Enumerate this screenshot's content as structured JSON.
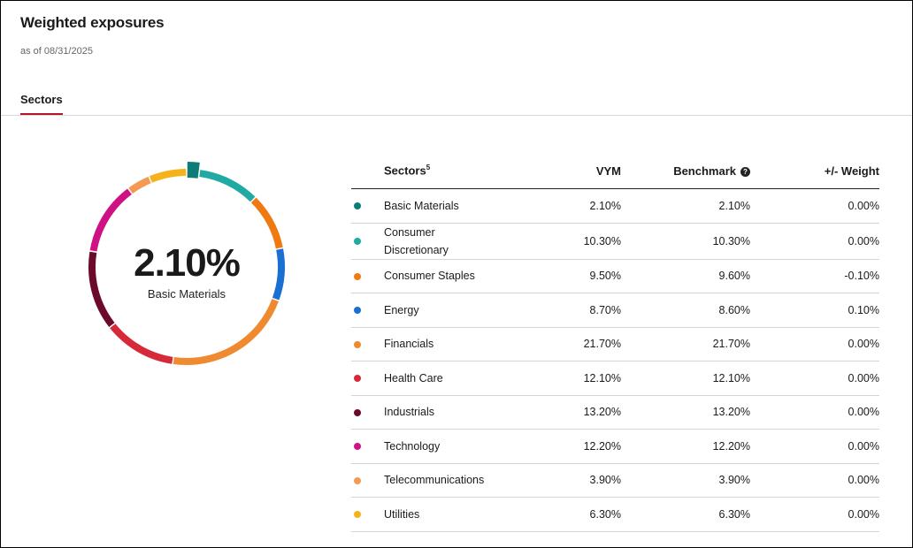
{
  "header": {
    "title": "Weighted exposures",
    "as_of": "as of 08/31/2025"
  },
  "tabs": [
    {
      "label": "Sectors",
      "active": true
    }
  ],
  "donut": {
    "center_value": "2.10%",
    "center_label": "Basic Materials",
    "highlighted_index": 0
  },
  "table": {
    "headers": {
      "sector": "Sectors",
      "sector_footnote": "5",
      "fund": "VYM",
      "benchmark": "Benchmark",
      "weight": "+/- Weight"
    }
  },
  "chart_data": {
    "type": "pie",
    "variant": "donut",
    "series": [
      {
        "name": "VYM",
        "values": [
          2.1,
          10.3,
          9.5,
          8.7,
          21.7,
          12.1,
          13.2,
          12.2,
          3.9,
          6.3
        ]
      },
      {
        "name": "Benchmark",
        "values": [
          2.1,
          10.3,
          9.6,
          8.6,
          21.7,
          12.1,
          13.2,
          12.2,
          3.9,
          6.3
        ]
      }
    ],
    "rows": [
      {
        "sector": "Basic Materials",
        "color": "#0d7c75",
        "vym": "2.10%",
        "benchmark": "2.10%",
        "weight": "0.00%"
      },
      {
        "sector": "Consumer Discretionary",
        "color": "#21aaa3",
        "vym": "10.30%",
        "benchmark": "10.30%",
        "weight": "0.00%"
      },
      {
        "sector": "Consumer Staples",
        "color": "#ef7a12",
        "vym": "9.50%",
        "benchmark": "9.60%",
        "weight": "-0.10%"
      },
      {
        "sector": "Energy",
        "color": "#1a6fd3",
        "vym": "8.70%",
        "benchmark": "8.60%",
        "weight": "0.10%"
      },
      {
        "sector": "Financials",
        "color": "#f08a30",
        "vym": "21.70%",
        "benchmark": "21.70%",
        "weight": "0.00%"
      },
      {
        "sector": "Health Care",
        "color": "#d6293a",
        "vym": "12.10%",
        "benchmark": "12.10%",
        "weight": "0.00%"
      },
      {
        "sector": "Industrials",
        "color": "#6b0a2a",
        "vym": "13.20%",
        "benchmark": "13.20%",
        "weight": "0.00%"
      },
      {
        "sector": "Technology",
        "color": "#cf1283",
        "vym": "12.20%",
        "benchmark": "12.20%",
        "weight": "0.00%"
      },
      {
        "sector": "Telecommunications",
        "color": "#f39b52",
        "vym": "3.90%",
        "benchmark": "3.90%",
        "weight": "0.00%"
      },
      {
        "sector": "Utilities",
        "color": "#f5b21a",
        "vym": "6.30%",
        "benchmark": "6.30%",
        "weight": "0.00%"
      }
    ]
  }
}
